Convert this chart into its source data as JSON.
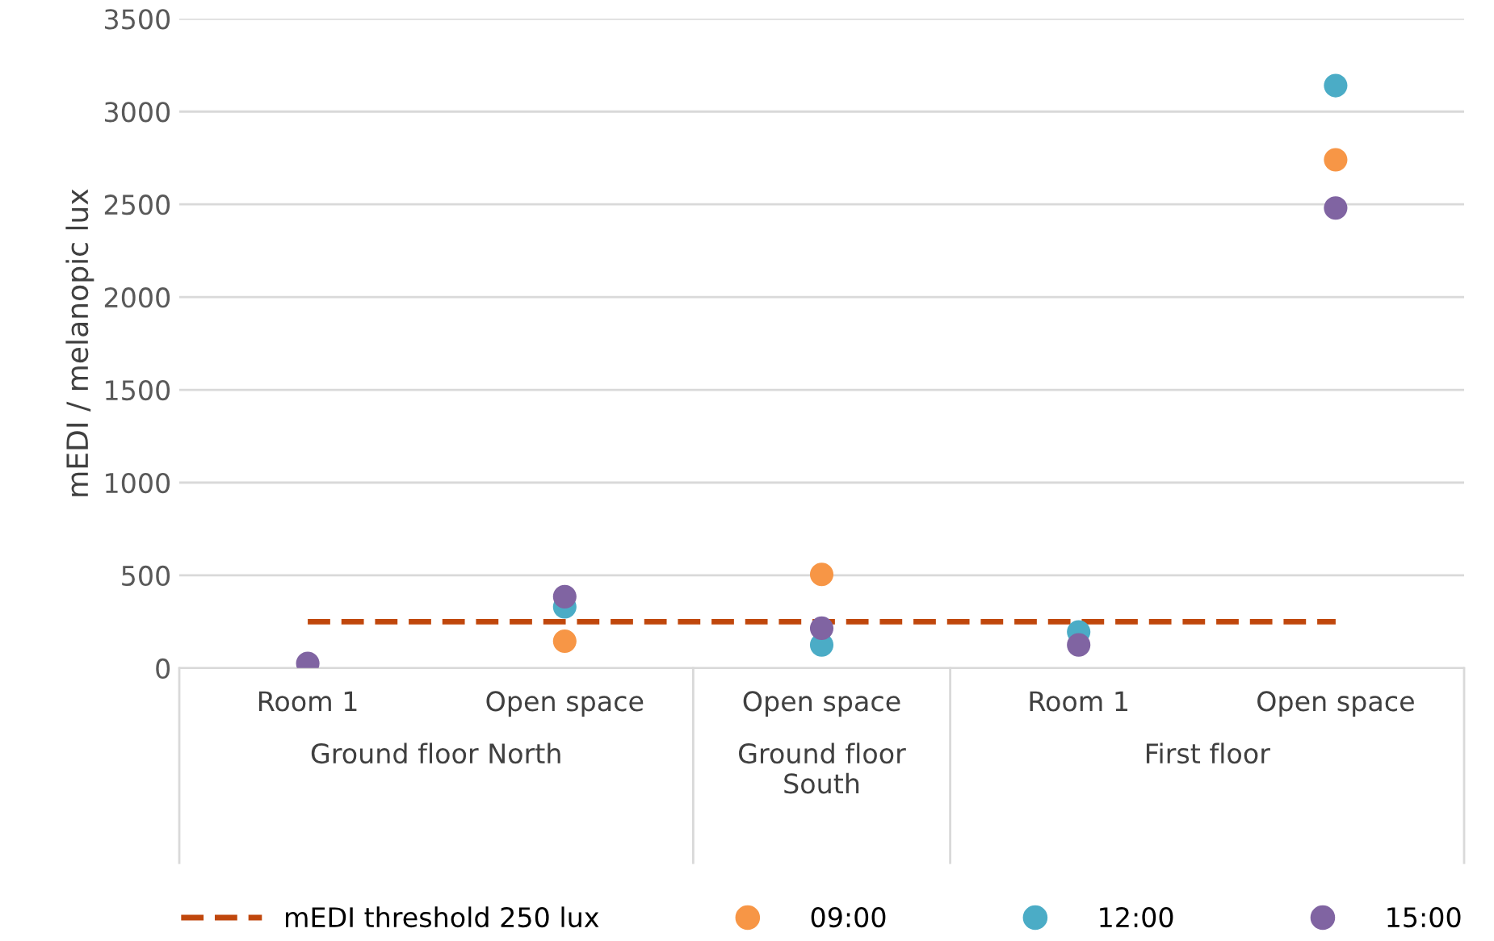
{
  "chart_data": {
    "type": "scatter",
    "ylabel": "mEDI / melanopic lux",
    "categories": [
      "Room 1",
      "Open space",
      "Open space",
      "Room 1",
      "Open space"
    ],
    "annotations": [
      "Ground floor North",
      "Ground floor\nSouth",
      "First floor"
    ],
    "series": [
      {
        "name": "09:00",
        "color": "#f79646",
        "values": [
          null,
          145,
          505,
          null,
          2740
        ]
      },
      {
        "name": "12:00",
        "color": "#4bacc6",
        "values": [
          null,
          330,
          125,
          195,
          3140
        ]
      },
      {
        "name": "15:00",
        "color": "#8064a2",
        "values": [
          25,
          385,
          215,
          125,
          2480
        ]
      }
    ],
    "ref_lines": [
      {
        "axis": "y",
        "value": 250,
        "label": "mEDI threshold 250 lux",
        "color": "#c0470c",
        "line_style": "dashed"
      }
    ],
    "ylim": [
      0,
      3500
    ],
    "yticks": [
      0,
      500,
      1000,
      1500,
      2000,
      2500,
      3000,
      3500
    ],
    "grid": "y",
    "legend": "bottom",
    "marker": "circle"
  }
}
